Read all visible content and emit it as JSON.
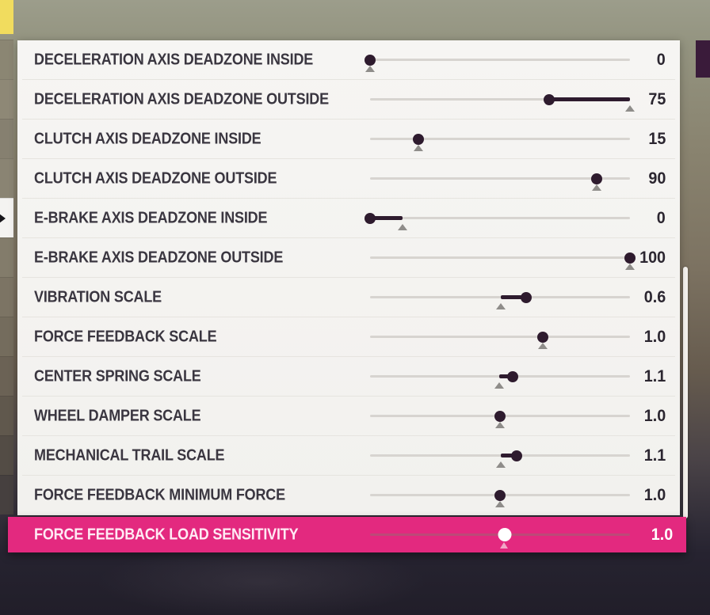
{
  "colors": {
    "accent_pink": "#e3297f",
    "panel_bg": "#f4f3f1",
    "knob_dark": "#2e1b2e",
    "track_gray": "#d7d4d0",
    "default_marker_gray": "#8f8d8a",
    "selected_text": "#ffffff",
    "yellow_tile": "#f1dc5e",
    "purple_tile": "#3a1b3a",
    "scrollbar": "#f5f2ee"
  },
  "background": {
    "left_strip_colors": [
      "#8b8673",
      "#8e8876",
      "#868070",
      "#8a8473",
      "#f4f3f1",
      "#837c6b",
      "#7c7464",
      "#746c5d",
      "#6b6255",
      "#60584d",
      "#534c45",
      "#46403f"
    ],
    "pointer_segment_index": 4
  },
  "settings_list": {
    "rows": [
      {
        "label": "DECELERATION AXIS DEADZONE INSIDE",
        "value": "0",
        "knob": 0.0,
        "marker": 0.0,
        "fill": null,
        "selected": false
      },
      {
        "label": "DECELERATION AXIS DEADZONE OUTSIDE",
        "value": "75",
        "knob": 0.69,
        "marker": 1.0,
        "fill": [
          0.69,
          1.0
        ],
        "selected": false
      },
      {
        "label": "CLUTCH AXIS DEADZONE INSIDE",
        "value": "15",
        "knob": 0.186,
        "marker": 0.186,
        "fill": null,
        "selected": false
      },
      {
        "label": "CLUTCH AXIS DEADZONE OUTSIDE",
        "value": "90",
        "knob": 0.872,
        "marker": 0.872,
        "fill": null,
        "selected": false
      },
      {
        "label": "E-BRAKE AXIS DEADZONE INSIDE",
        "value": "0",
        "knob": 0.0,
        "marker": 0.125,
        "fill": [
          0.0,
          0.125
        ],
        "selected": false
      },
      {
        "label": "E-BRAKE AXIS DEADZONE OUTSIDE",
        "value": "100",
        "knob": 1.0,
        "marker": 1.0,
        "fill": null,
        "selected": false
      },
      {
        "label": "VIBRATION SCALE",
        "value": "0.6",
        "knob": 0.6,
        "marker": 0.503,
        "fill": [
          0.503,
          0.6
        ],
        "selected": false
      },
      {
        "label": "FORCE FEEDBACK SCALE",
        "value": "1.0",
        "knob": 0.665,
        "marker": 0.665,
        "fill": null,
        "selected": false
      },
      {
        "label": "CENTER SPRING SCALE",
        "value": "1.1",
        "knob": 0.549,
        "marker": 0.497,
        "fill": [
          0.497,
          0.549
        ],
        "selected": false
      },
      {
        "label": "WHEEL DAMPER SCALE",
        "value": "1.0",
        "knob": 0.5,
        "marker": 0.5,
        "fill": null,
        "selected": false
      },
      {
        "label": "MECHANICAL TRAIL SCALE",
        "value": "1.1",
        "knob": 0.564,
        "marker": 0.503,
        "fill": [
          0.503,
          0.564
        ],
        "selected": false
      },
      {
        "label": "FORCE FEEDBACK MINIMUM FORCE",
        "value": "1.0",
        "knob": 0.5,
        "marker": 0.5,
        "fill": null,
        "selected": false
      },
      {
        "label": "FORCE FEEDBACK LOAD SENSITIVITY",
        "value": "1.0",
        "knob": 0.518,
        "marker": 0.518,
        "fill": null,
        "selected": true
      }
    ]
  }
}
